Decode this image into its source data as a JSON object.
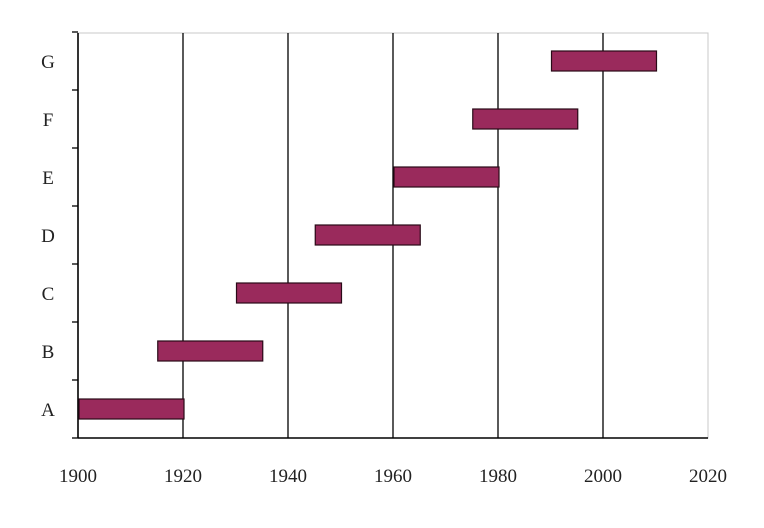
{
  "chart_data": {
    "type": "bar",
    "orientation": "horizontal-range",
    "categories": [
      "A",
      "B",
      "C",
      "D",
      "E",
      "F",
      "G"
    ],
    "ranges": [
      {
        "category": "A",
        "start": 1900,
        "end": 1920
      },
      {
        "category": "B",
        "start": 1915,
        "end": 1935
      },
      {
        "category": "C",
        "start": 1930,
        "end": 1950
      },
      {
        "category": "D",
        "start": 1945,
        "end": 1965
      },
      {
        "category": "E",
        "start": 1960,
        "end": 1980
      },
      {
        "category": "F",
        "start": 1975,
        "end": 1995
      },
      {
        "category": "G",
        "start": 1990,
        "end": 2010
      }
    ],
    "xlim": [
      1900,
      2020
    ],
    "xticks": [
      "1900",
      "1920",
      "1940",
      "1960",
      "1980",
      "2000",
      "2020"
    ],
    "title": "",
    "xlabel": "",
    "ylabel": "",
    "grid": "vertical",
    "legend": "none",
    "colors": {
      "bar_fill": "#9a2a5c",
      "bar_stroke": "#2a0a18",
      "grid": "#000000",
      "axis": "#000000"
    }
  }
}
